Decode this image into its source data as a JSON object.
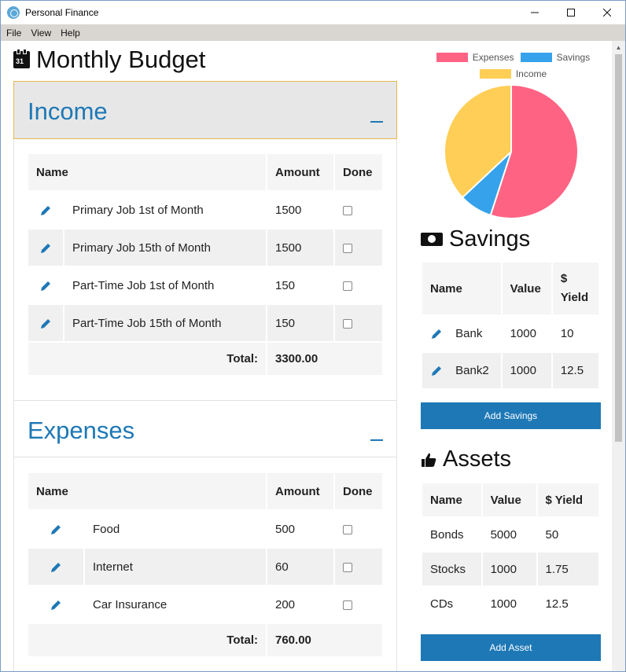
{
  "window": {
    "title": "Personal Finance"
  },
  "menu": [
    "File",
    "View",
    "Help"
  ],
  "page": {
    "title": "Monthly Budget"
  },
  "income": {
    "title": "Income",
    "columns": {
      "name": "Name",
      "amount": "Amount",
      "done": "Done"
    },
    "rows": [
      {
        "name": "Primary Job 1st of Month",
        "amount": "1500"
      },
      {
        "name": "Primary Job 15th of Month",
        "amount": "1500"
      },
      {
        "name": "Part-Time Job 1st of Month",
        "amount": "150"
      },
      {
        "name": "Part-Time Job 15th of Month",
        "amount": "150"
      }
    ],
    "total_label": "Total:",
    "total_value": "3300.00"
  },
  "expenses": {
    "title": "Expenses",
    "columns": {
      "name": "Name",
      "amount": "Amount",
      "done": "Done"
    },
    "rows": [
      {
        "name": "Food",
        "amount": "500"
      },
      {
        "name": "Internet",
        "amount": "60"
      },
      {
        "name": "Car Insurance",
        "amount": "200"
      }
    ],
    "total_label": "Total:",
    "total_value": "760.00"
  },
  "chart_data": {
    "type": "pie",
    "categories": [
      "Expenses",
      "Savings",
      "Income"
    ],
    "values": [
      55,
      8,
      37
    ],
    "colors": [
      "#ff6384",
      "#36a2eb",
      "#ffce56"
    ],
    "legend": "top"
  },
  "savings": {
    "title": "Savings",
    "columns": {
      "name": "Name",
      "value": "Value",
      "yield_line1": "$",
      "yield_line2": "Yield"
    },
    "rows": [
      {
        "name": "Bank",
        "value": "1000",
        "yield": "10"
      },
      {
        "name": "Bank2",
        "value": "1000",
        "yield": "12.5"
      }
    ],
    "add_button": "Add Savings"
  },
  "assets": {
    "title": "Assets",
    "columns": {
      "name": "Name",
      "value": "Value",
      "yield": "$ Yield"
    },
    "rows": [
      {
        "name": "Bonds",
        "value": "5000",
        "yield": "50"
      },
      {
        "name": "Stocks",
        "value": "1000",
        "yield": "1.75"
      },
      {
        "name": "CDs",
        "value": "1000",
        "yield": "12.5"
      }
    ],
    "add_button": "Add Asset"
  },
  "colors": {
    "accent": "#1e78b6",
    "panel_active_border": "#e8b94a"
  },
  "icons": {
    "edit": "pencil-icon",
    "calendar": "calendar-icon",
    "savings": "money-icon",
    "assets": "thumbs-up-icon"
  }
}
